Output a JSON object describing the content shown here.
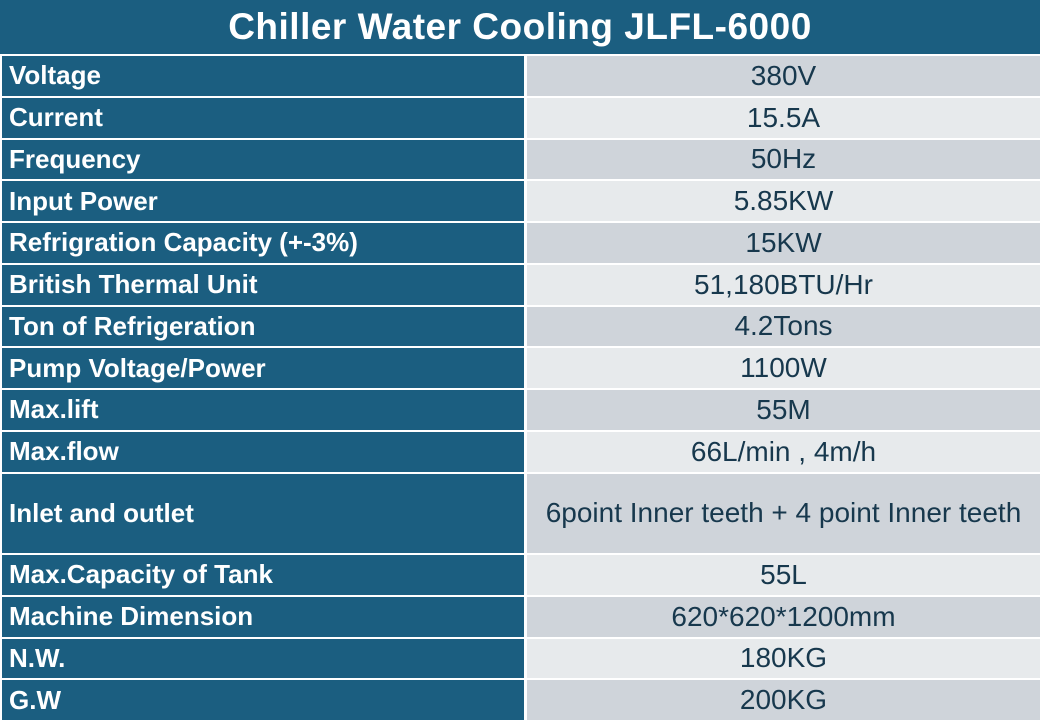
{
  "colors": {
    "header_bg": "#1B5E80",
    "label_bg": "#1B5E80",
    "label_text": "#FFFFFF",
    "row_shade_dark": "#CFD4DA",
    "row_shade_light": "#E7EAEC",
    "value_text": "#17384D",
    "separator": "#FFFFFF"
  },
  "chart_data": {
    "type": "table",
    "title": "Chiller Water Cooling JLFL-6000",
    "legend_position": "none",
    "grid": "white cell separators, two columns (label | value), alternating value-row shading",
    "rows": [
      [
        "Voltage",
        "380V"
      ],
      [
        "Current",
        "15.5A"
      ],
      [
        "Frequency",
        "50Hz"
      ],
      [
        "Input Power",
        "5.85KW"
      ],
      [
        "Refrigration Capacity (+-3%)",
        "15KW"
      ],
      [
        "British Thermal Unit",
        "51,180BTU/Hr"
      ],
      [
        "Ton of Refrigeration",
        "4.2Tons"
      ],
      [
        "Pump Voltage/Power",
        "1100W"
      ],
      [
        "Max.lift",
        "55M"
      ],
      [
        "Max.flow",
        "66L/min , 4m/h"
      ],
      [
        "Inlet and outlet",
        "6point Inner teeth + 4 point Inner teeth"
      ],
      [
        "Max.Capacity of Tank",
        "55L"
      ],
      [
        "Machine Dimension",
        "620*620*1200mm"
      ],
      [
        "N.W.",
        "180KG"
      ],
      [
        "G.W",
        "200KG"
      ]
    ]
  }
}
